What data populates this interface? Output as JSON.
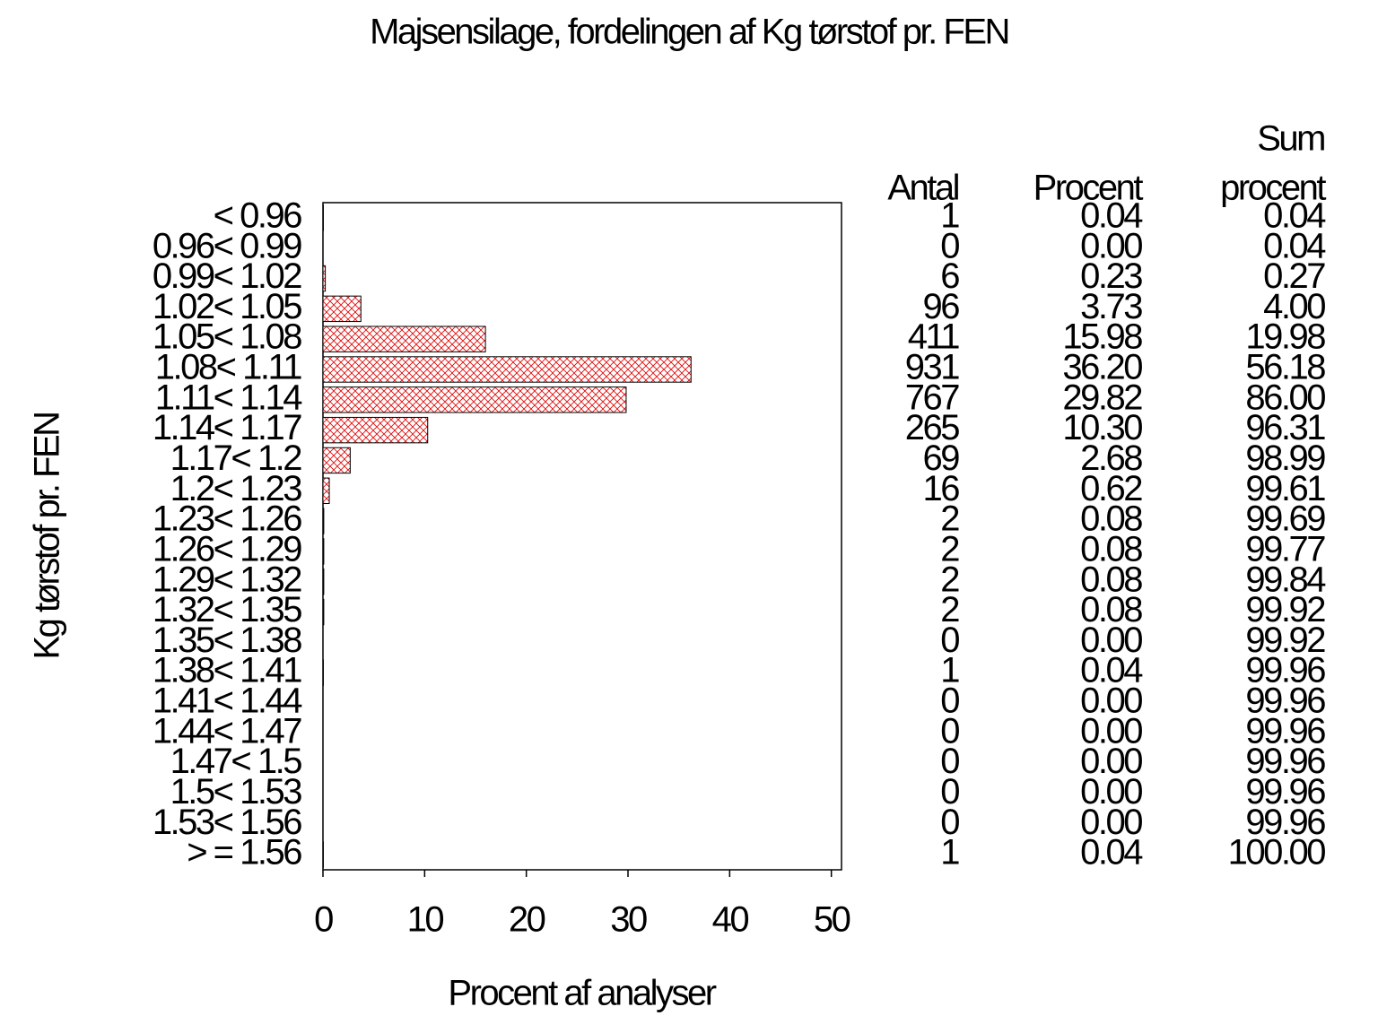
{
  "chart_data": {
    "type": "bar",
    "orientation": "horizontal",
    "title": "Majsensilage, fordelingen af Kg tørstof pr. FEN",
    "xlabel": "Procent af analyser",
    "ylabel": "Kg tørstof pr. FEN",
    "categories": [
      "< 0.96",
      "0.96< 0.99",
      "0.99< 1.02",
      "1.02< 1.05",
      "1.05< 1.08",
      "1.08< 1.11",
      "1.11< 1.14",
      "1.14< 1.17",
      "1.17< 1.2",
      "1.2< 1.23",
      "1.23< 1.26",
      "1.26< 1.29",
      "1.29< 1.32",
      "1.32< 1.35",
      "1.35< 1.38",
      "1.38< 1.41",
      "1.41< 1.44",
      "1.44< 1.47",
      "1.47< 1.5",
      "1.5< 1.53",
      "1.53< 1.56",
      "> = 1.56"
    ],
    "values": [
      0.04,
      0.0,
      0.23,
      3.73,
      15.98,
      36.2,
      29.82,
      10.3,
      2.68,
      0.62,
      0.08,
      0.08,
      0.08,
      0.08,
      0.0,
      0.04,
      0.0,
      0.0,
      0.0,
      0.0,
      0.0,
      0.04
    ],
    "value_labels": [
      "0.04",
      "0.00",
      "0.23",
      "3.73",
      "15.98",
      "36.20",
      "29.82",
      "10.30",
      "2.68",
      "0.62",
      "0.08",
      "0.08",
      "0.08",
      "0.08",
      "0.00",
      "0.04",
      "0.00",
      "0.00",
      "0.00",
      "0.00",
      "0.00",
      "0.04"
    ],
    "color": "#e00000",
    "xlim": [
      0,
      51
    ],
    "xticks": [
      0,
      10,
      20,
      30,
      40,
      50
    ],
    "grid": false,
    "table": {
      "count_header": "Antal",
      "percent_header": "Procent",
      "cumulative_header": [
        "Sum",
        "procent"
      ],
      "counts": [
        1,
        0,
        6,
        96,
        411,
        931,
        767,
        265,
        69,
        16,
        2,
        2,
        2,
        2,
        0,
        1,
        0,
        0,
        0,
        0,
        0,
        1
      ],
      "cumulative": [
        0.04,
        0.04,
        0.27,
        4.0,
        19.98,
        56.18,
        86.0,
        96.31,
        98.99,
        99.61,
        99.69,
        99.77,
        99.84,
        99.92,
        99.92,
        99.96,
        99.96,
        99.96,
        99.96,
        99.96,
        99.96,
        100.0
      ],
      "cumulative_labels": [
        "0.04",
        "0.04",
        "0.27",
        "4.00",
        "19.98",
        "56.18",
        "86.00",
        "96.31",
        "98.99",
        "99.61",
        "99.69",
        "99.77",
        "99.84",
        "99.92",
        "99.92",
        "99.96",
        "99.96",
        "99.96",
        "99.96",
        "99.96",
        "99.96",
        "100.00"
      ]
    }
  }
}
